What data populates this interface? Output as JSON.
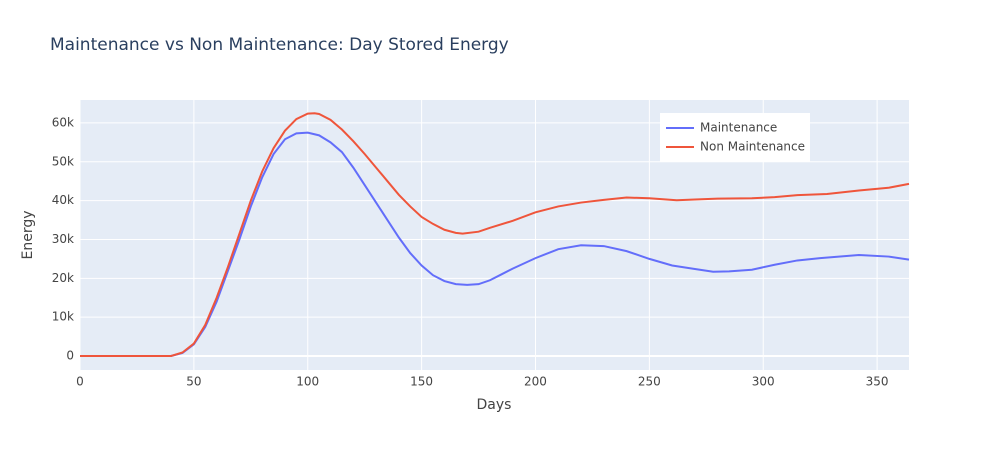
{
  "chart_data": {
    "type": "line",
    "title": "Maintenance vs Non Maintenance: Day Stored Energy",
    "x_label": "Days",
    "y_label": "Energy",
    "xlim": [
      0,
      364
    ],
    "ylim": [
      -3600,
      65900
    ],
    "xticks": [
      0,
      50,
      100,
      150,
      200,
      250,
      300,
      350
    ],
    "yticks": [
      0,
      {
        "value": 10000,
        "label": "10k"
      },
      {
        "value": 20000,
        "label": "20k"
      },
      {
        "value": 30000,
        "label": "30k"
      },
      {
        "value": 40000,
        "label": "40k"
      },
      {
        "value": 50000,
        "label": "50k"
      },
      {
        "value": 60000,
        "label": "60k"
      }
    ],
    "grid": true,
    "legend": "upper right",
    "series": [
      {
        "name": "Maintenance",
        "color": "#636efa",
        "x": [
          0,
          40,
          45,
          50,
          55,
          60,
          65,
          70,
          75,
          80,
          85,
          90,
          95,
          100,
          105,
          110,
          115,
          120,
          125,
          130,
          135,
          140,
          145,
          150,
          155,
          160,
          165,
          170,
          175,
          180,
          185,
          190,
          200,
          210,
          220,
          230,
          240,
          250,
          260,
          270,
          278,
          285,
          295,
          305,
          315,
          325,
          342,
          355,
          364
        ],
        "values": [
          0,
          0,
          800,
          3000,
          7500,
          14000,
          22000,
          30000,
          38500,
          46000,
          52000,
          55800,
          57300,
          57500,
          56800,
          55000,
          52500,
          48500,
          44000,
          39500,
          35000,
          30500,
          26500,
          23300,
          20800,
          19300,
          18500,
          18300,
          18500,
          19500,
          21000,
          22500,
          25200,
          27500,
          28500,
          28300,
          27000,
          25000,
          23300,
          22400,
          21700,
          21800,
          22200,
          23500,
          24600,
          25200,
          26000,
          25600,
          24800
        ]
      },
      {
        "name": "Non Maintenance",
        "color": "#ef553b",
        "x": [
          0,
          40,
          45,
          50,
          55,
          60,
          65,
          70,
          75,
          80,
          85,
          90,
          95,
          100,
          103,
          105,
          110,
          115,
          120,
          125,
          130,
          135,
          140,
          145,
          150,
          155,
          160,
          165,
          168,
          175,
          180,
          190,
          200,
          210,
          220,
          230,
          240,
          250,
          262,
          270,
          280,
          295,
          305,
          315,
          328,
          342,
          355,
          364
        ],
        "values": [
          0,
          0,
          900,
          3200,
          8000,
          15000,
          23000,
          31500,
          40000,
          47500,
          53500,
          58000,
          61000,
          62400,
          62500,
          62300,
          60800,
          58300,
          55300,
          52000,
          48500,
          45000,
          41500,
          38500,
          35800,
          34000,
          32500,
          31700,
          31500,
          32000,
          33000,
          34800,
          37000,
          38500,
          39500,
          40200,
          40800,
          40600,
          40100,
          40300,
          40500,
          40600,
          40900,
          41400,
          41700,
          42600,
          43300,
          44300
        ]
      }
    ]
  }
}
